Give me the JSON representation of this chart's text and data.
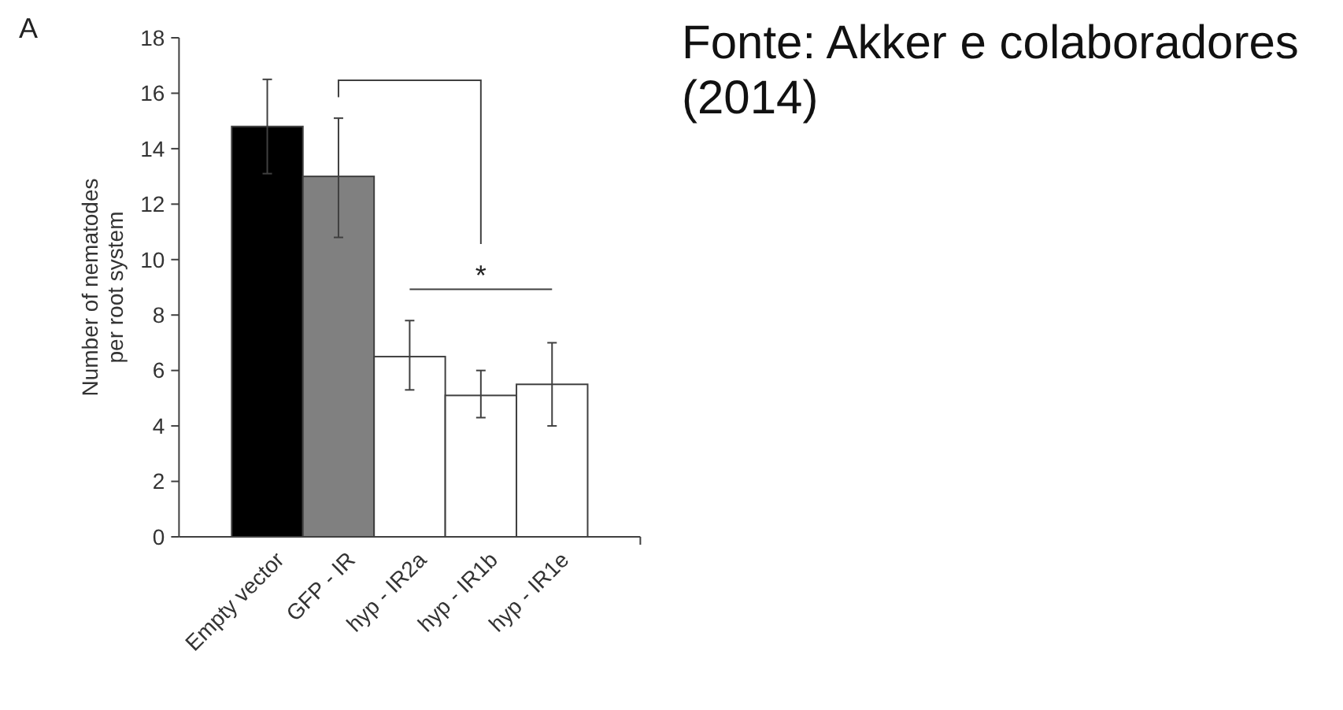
{
  "chart_data": {
    "type": "bar",
    "ylabel": "Number of nematodes per root system",
    "categories": [
      "Empty vector",
      "GFP - IR",
      "hyp - IR2a",
      "hyp - IR1b",
      "hyp - IR1e"
    ],
    "values": [
      14.8,
      13.0,
      6.5,
      5.1,
      5.5
    ],
    "colors": [
      "#000000",
      "#808080",
      "#ffffff",
      "#ffffff",
      "#ffffff"
    ],
    "errors": [
      1.7,
      [
        10.8,
        15.1
      ],
      [
        5.3,
        7.8
      ],
      [
        4.3,
        6.0
      ],
      [
        4.0,
        7.0
      ]
    ],
    "ylim": [
      0,
      18
    ],
    "yticks": [
      0,
      2,
      4,
      6,
      8,
      10,
      12,
      14,
      16,
      18
    ],
    "annotations": [
      "A",
      "*",
      "Fonte: Akker e colaboradores (2014)"
    ]
  }
}
